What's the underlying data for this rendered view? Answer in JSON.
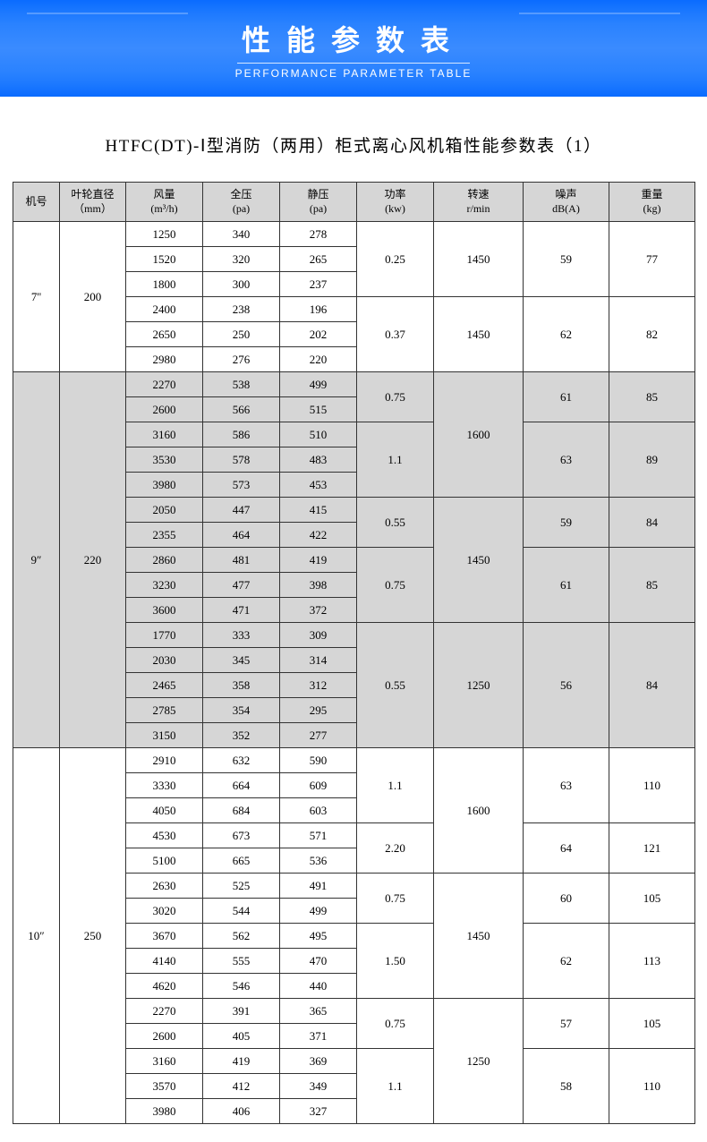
{
  "banner": {
    "title": "性能参数表",
    "subtitle": "PERFORMANCE PARAMETER TABLE"
  },
  "subtitle": "HTFC(DT)-Ⅰ型消防（两用）柜式离心风机箱性能参数表（1）",
  "columns": [
    {
      "l1": "机号",
      "l2": ""
    },
    {
      "l1": "叶轮直径",
      "l2": "（mm）"
    },
    {
      "l1": "风量",
      "l2": "(m³/h)"
    },
    {
      "l1": "全压",
      "l2": "(pa)"
    },
    {
      "l1": "静压",
      "l2": "(pa)"
    },
    {
      "l1": "功率",
      "l2": "(kw)"
    },
    {
      "l1": "转速",
      "l2": "r/min"
    },
    {
      "l1": "噪声",
      "l2": "dB(A)"
    },
    {
      "l1": "重量",
      "l2": "(kg)"
    }
  ],
  "groups": [
    {
      "shade": false,
      "model": "7''",
      "dia": "200",
      "sub": [
        {
          "kw": "0.25",
          "rpm": "1450",
          "db": "59",
          "kg": "77",
          "rows": [
            [
              "1250",
              "340",
              "278"
            ],
            [
              "1520",
              "320",
              "265"
            ],
            [
              "1800",
              "300",
              "237"
            ]
          ]
        },
        {
          "kw": "0.37",
          "rpm": "1450",
          "db": "62",
          "kg": "82",
          "rows": [
            [
              "2400",
              "238",
              "196"
            ],
            [
              "2650",
              "250",
              "202"
            ],
            [
              "2980",
              "276",
              "220"
            ]
          ]
        }
      ]
    },
    {
      "shade": true,
      "model": "9″",
      "dia": "220",
      "sub": [
        {
          "kw": "0.75",
          "rpm": "1600",
          "rpm_span": 5,
          "db": "61",
          "kg": "85",
          "rows": [
            [
              "2270",
              "538",
              "499"
            ],
            [
              "2600",
              "566",
              "515"
            ]
          ]
        },
        {
          "kw": "1.1",
          "db": "63",
          "kg": "89",
          "rows": [
            [
              "3160",
              "586",
              "510"
            ],
            [
              "3530",
              "578",
              "483"
            ],
            [
              "3980",
              "573",
              "453"
            ]
          ]
        },
        {
          "kw": "0.55",
          "rpm": "1450",
          "rpm_span": 5,
          "db": "59",
          "kg": "84",
          "rows": [
            [
              "2050",
              "447",
              "415"
            ],
            [
              "2355",
              "464",
              "422"
            ]
          ]
        },
        {
          "kw": "0.75",
          "db": "61",
          "kg": "85",
          "rows": [
            [
              "2860",
              "481",
              "419"
            ],
            [
              "3230",
              "477",
              "398"
            ],
            [
              "3600",
              "471",
              "372"
            ]
          ]
        },
        {
          "kw": "0.55",
          "rpm": "1250",
          "db": "56",
          "kg": "84",
          "rows": [
            [
              "1770",
              "333",
              "309"
            ],
            [
              "2030",
              "345",
              "314"
            ],
            [
              "2465",
              "358",
              "312"
            ],
            [
              "2785",
              "354",
              "295"
            ],
            [
              "3150",
              "352",
              "277"
            ]
          ]
        }
      ]
    },
    {
      "shade": false,
      "model": "10″",
      "dia": "250",
      "sub": [
        {
          "kw": "1.1",
          "rpm": "1600",
          "rpm_span": 5,
          "db": "63",
          "kg": "110",
          "rows": [
            [
              "2910",
              "632",
              "590"
            ],
            [
              "3330",
              "664",
              "609"
            ],
            [
              "4050",
              "684",
              "603"
            ]
          ]
        },
        {
          "kw": "2.20",
          "db": "64",
          "kg": "121",
          "rows": [
            [
              "4530",
              "673",
              "571"
            ],
            [
              "5100",
              "665",
              "536"
            ]
          ]
        },
        {
          "kw": "0.75",
          "rpm": "1450",
          "rpm_span": 5,
          "db": "60",
          "kg": "105",
          "rows": [
            [
              "2630",
              "525",
              "491"
            ],
            [
              "3020",
              "544",
              "499"
            ]
          ]
        },
        {
          "kw": "1.50",
          "db": "62",
          "kg": "113",
          "rows": [
            [
              "3670",
              "562",
              "495"
            ],
            [
              "4140",
              "555",
              "470"
            ],
            [
              "4620",
              "546",
              "440"
            ]
          ]
        },
        {
          "kw": "0.75",
          "rpm": "1250",
          "rpm_span": 5,
          "db": "57",
          "kg": "105",
          "rows": [
            [
              "2270",
              "391",
              "365"
            ],
            [
              "2600",
              "405",
              "371"
            ]
          ]
        },
        {
          "kw": "1.1",
          "db": "58",
          "kg": "110",
          "rows": [
            [
              "3160",
              "419",
              "369"
            ],
            [
              "3570",
              "412",
              "349"
            ],
            [
              "3980",
              "406",
              "327"
            ]
          ]
        }
      ]
    }
  ]
}
